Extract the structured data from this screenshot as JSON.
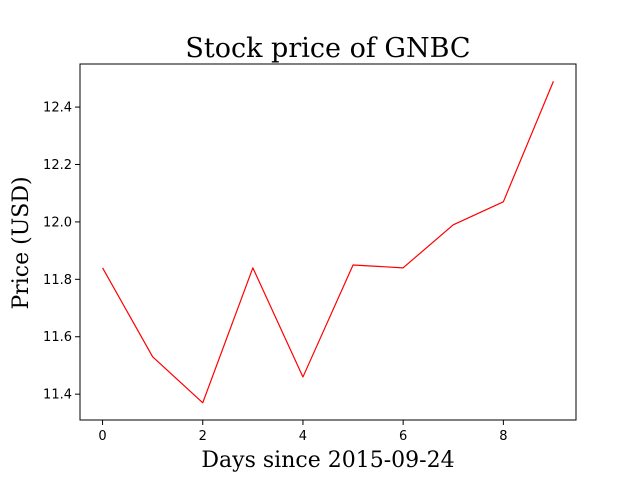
{
  "chart_data": {
    "type": "line",
    "title": "Stock price of GNBC",
    "xlabel": "Days since 2015-09-24",
    "ylabel": "Price (USD)",
    "xlim": [
      -0.45,
      9.45
    ],
    "ylim": [
      11.31,
      12.55
    ],
    "xticks": [
      0,
      2,
      4,
      6,
      8
    ],
    "yticks": [
      11.4,
      11.6,
      11.8,
      12.0,
      12.2,
      12.4
    ],
    "grid": false,
    "series": [
      {
        "color": "#ff0000",
        "x": [
          0,
          1,
          2,
          3,
          4,
          5,
          6,
          7,
          8,
          9
        ],
        "y": [
          11.84,
          11.53,
          11.37,
          11.84,
          11.46,
          11.85,
          11.84,
          11.99,
          12.07,
          12.49
        ]
      }
    ]
  }
}
